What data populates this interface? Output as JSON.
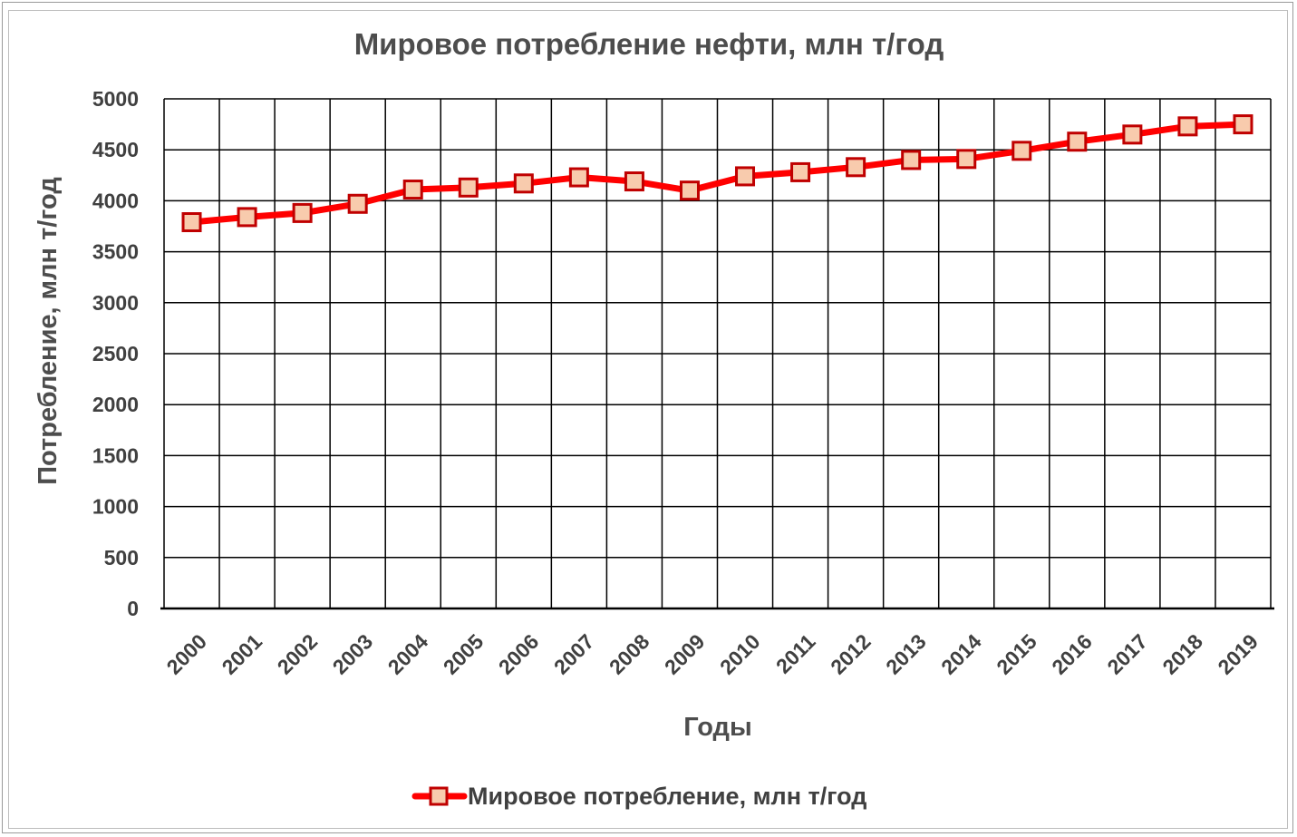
{
  "chart_data": {
    "type": "line",
    "title": "Мировое потребление нефти, млн т/год",
    "xlabel": "Годы",
    "ylabel": "Потребление, млн т/год",
    "ylim": [
      0,
      5000
    ],
    "yticks": [
      0,
      500,
      1000,
      1500,
      2000,
      2500,
      3000,
      3500,
      4000,
      4500,
      5000
    ],
    "categories": [
      "2000",
      "2001",
      "2002",
      "2003",
      "2004",
      "2005",
      "2006",
      "2007",
      "2008",
      "2009",
      "2010",
      "2011",
      "2012",
      "2013",
      "2014",
      "2015",
      "2016",
      "2017",
      "2018",
      "2019"
    ],
    "series": [
      {
        "name": "Мировое потребление, млн т/год",
        "values": [
          3790,
          3840,
          3880,
          3970,
          4110,
          4130,
          4170,
          4230,
          4190,
          4100,
          4240,
          4280,
          4330,
          4400,
          4410,
          4490,
          4580,
          4650,
          4730,
          4750
        ]
      }
    ],
    "grid": true,
    "legend": "bottom",
    "colors": {
      "line": "#ff0000",
      "marker_fill": "#f8cbad",
      "marker_stroke": "#c00000",
      "grid": "#000000",
      "text": "#404040"
    }
  }
}
